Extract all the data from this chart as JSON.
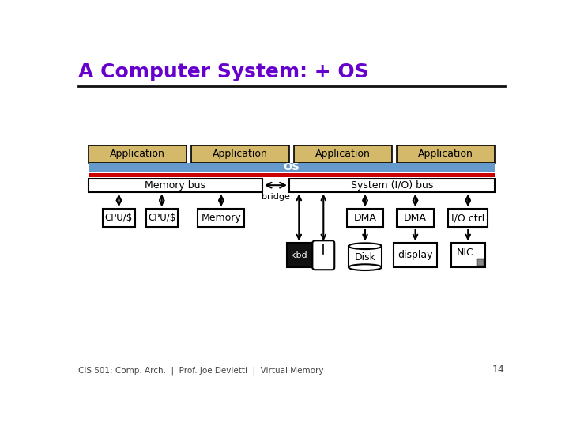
{
  "title": "A Computer System: + OS",
  "title_color": "#6600CC",
  "title_fontsize": 18,
  "bg_color": "#FFFFFF",
  "footer": "CIS 501: Comp. Arch.  |  Prof. Joe Devietti  |  Virtual Memory",
  "footer_page": "14",
  "app_boxes": [
    "Application",
    "Application",
    "Application",
    "Application"
  ],
  "app_box_color": "#D4B96A",
  "os_bar_color": "#6699CC",
  "os_text_color": "#FFFFFF",
  "memory_bus_label": "Memory bus",
  "system_bus_label": "System (I/O) bus",
  "red_line_color": "#CC0000",
  "bridge_label": "bridge",
  "kbd_bg": "#111111",
  "kbd_text_color": "#FFFFFF"
}
